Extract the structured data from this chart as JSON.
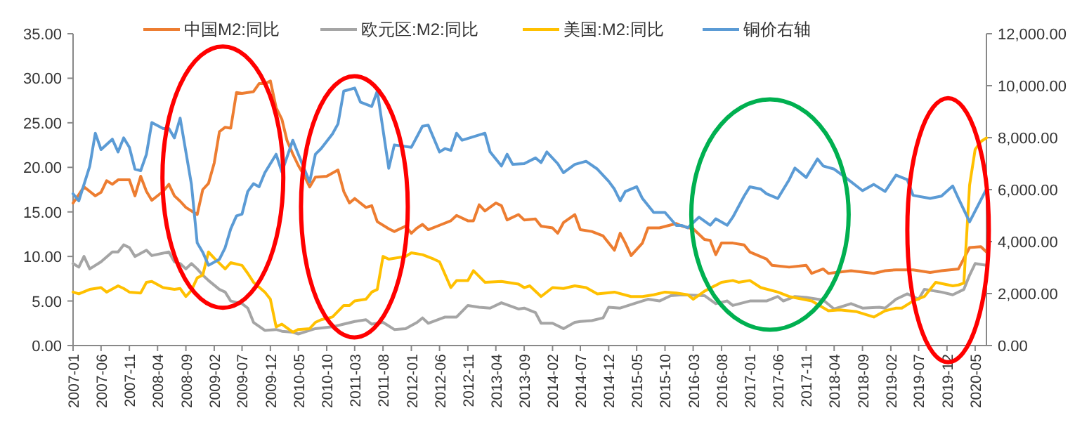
{
  "chart_data": {
    "type": "line",
    "legend": "top",
    "line_style": "solid",
    "marker": "none",
    "grid": false,
    "xlim": [
      "2007-01",
      "2020-07"
    ],
    "xticks": [
      "2007-01",
      "2007-06",
      "2007-11",
      "2008-04",
      "2008-09",
      "2009-02",
      "2009-07",
      "2009-12",
      "2010-05",
      "2010-10",
      "2011-03",
      "2011-08",
      "2012-01",
      "2012-06",
      "2012-11",
      "2013-04",
      "2013-09",
      "2014-02",
      "2014-07",
      "2014-12",
      "2015-05",
      "2015-10",
      "2016-03",
      "2016-08",
      "2017-01",
      "2017-06",
      "2017-11",
      "2018-04",
      "2018-09",
      "2019-02",
      "2019-07",
      "2019-12",
      "2020-05"
    ],
    "ylim": [
      0,
      35
    ],
    "yticks": [
      {
        "value": 0,
        "label": "0.00"
      },
      {
        "value": 5,
        "label": "5.00"
      },
      {
        "value": 10,
        "label": "10.00"
      },
      {
        "value": 15,
        "label": "15.00"
      },
      {
        "value": 20,
        "label": "20.00"
      },
      {
        "value": 25,
        "label": "25.00"
      },
      {
        "value": 30,
        "label": "30.00"
      },
      {
        "value": 35,
        "label": "35.00"
      }
    ],
    "y2lim": [
      0,
      12000
    ],
    "y2ticks": [
      {
        "value": 0,
        "label": "0.00"
      },
      {
        "value": 2000,
        "label": "2,000.00"
      },
      {
        "value": 4000,
        "label": "4,000.00"
      },
      {
        "value": 6000,
        "label": "6,000.00"
      },
      {
        "value": 8000,
        "label": "8,000.00"
      },
      {
        "value": 10000,
        "label": "10,000.00"
      },
      {
        "value": 12000,
        "label": "12,000.00"
      }
    ],
    "series": [
      {
        "name": "中国M2:同比",
        "color": "#ed7d31",
        "x": [
          "2007-01",
          "2007-03",
          "2007-04",
          "2007-05",
          "2007-06",
          "2007-07",
          "2007-08",
          "2007-09",
          "2007-11",
          "2007-12",
          "2008-01",
          "2008-02",
          "2008-03",
          "2008-05",
          "2008-06",
          "2008-07",
          "2008-08",
          "2008-09",
          "2008-11",
          "2008-12",
          "2009-01",
          "2009-02",
          "2009-03",
          "2009-04",
          "2009-05",
          "2009-06",
          "2009-07",
          "2009-09",
          "2009-10",
          "2009-11",
          "2009-12",
          "2010-01",
          "2010-02",
          "2010-03",
          "2010-04",
          "2010-05",
          "2010-06",
          "2010-07",
          "2010-08",
          "2010-10",
          "2010-12",
          "2011-01",
          "2011-02",
          "2011-03",
          "2011-05",
          "2011-06",
          "2011-07",
          "2011-09",
          "2011-10",
          "2011-12",
          "2012-01",
          "2012-02",
          "2012-03",
          "2012-04",
          "2012-06",
          "2012-08",
          "2012-09",
          "2012-11",
          "2012-12",
          "2013-01",
          "2013-02",
          "2013-04",
          "2013-05",
          "2013-06",
          "2013-08",
          "2013-09",
          "2013-11",
          "2013-12",
          "2014-02",
          "2014-03",
          "2014-04",
          "2014-06",
          "2014-07",
          "2014-09",
          "2014-11",
          "2015-01",
          "2015-02",
          "2015-03",
          "2015-04",
          "2015-06",
          "2015-07",
          "2015-09",
          "2015-12",
          "2016-01",
          "2016-03",
          "2016-05",
          "2016-06",
          "2016-07",
          "2016-08",
          "2016-10",
          "2016-12",
          "2017-01",
          "2017-04",
          "2017-05",
          "2017-08",
          "2017-11",
          "2017-12",
          "2018-02",
          "2018-03",
          "2018-07",
          "2018-11",
          "2019-01",
          "2019-03",
          "2019-06",
          "2019-09",
          "2019-11",
          "2020-02",
          "2020-04",
          "2020-06",
          "2020-07"
        ],
        "values": [
          16.0,
          17.8,
          17.3,
          16.8,
          17.2,
          18.5,
          18.1,
          18.6,
          18.6,
          16.8,
          19.0,
          17.3,
          16.3,
          17.3,
          18.1,
          16.8,
          16.2,
          15.5,
          14.7,
          17.5,
          18.2,
          20.5,
          24.0,
          24.5,
          24.4,
          28.4,
          28.3,
          28.5,
          29.4,
          29.4,
          29.7,
          26.7,
          25.4,
          23.0,
          21.5,
          20.2,
          19.1,
          17.8,
          18.9,
          19.0,
          19.7,
          17.3,
          16.0,
          16.5,
          15.5,
          15.7,
          13.9,
          13.1,
          12.8,
          13.4,
          12.6,
          13.2,
          13.6,
          13.0,
          13.5,
          14.0,
          14.6,
          14.0,
          14.0,
          15.8,
          15.1,
          16.0,
          15.7,
          14.1,
          14.7,
          14.1,
          14.2,
          13.4,
          13.2,
          12.6,
          13.8,
          14.7,
          13.0,
          12.8,
          12.3,
          10.7,
          12.6,
          11.5,
          10.1,
          11.5,
          13.2,
          13.2,
          13.7,
          13.4,
          13.1,
          11.9,
          11.8,
          10.2,
          11.5,
          11.5,
          11.3,
          10.5,
          9.7,
          9.0,
          8.8,
          9.0,
          8.1,
          8.6,
          8.1,
          8.4,
          8.1,
          8.4,
          8.5,
          8.5,
          8.2,
          8.4,
          8.6,
          11.0,
          11.1,
          10.5
        ]
      },
      {
        "name": "欧元区:M2:同比",
        "color": "#a5a5a5",
        "x": [
          "2007-01",
          "2007-02",
          "2007-03",
          "2007-04",
          "2007-06",
          "2007-08",
          "2007-09",
          "2007-10",
          "2007-11",
          "2007-12",
          "2008-02",
          "2008-03",
          "2008-06",
          "2008-07",
          "2008-08",
          "2008-09",
          "2008-10",
          "2008-11",
          "2008-12",
          "2009-01",
          "2009-03",
          "2009-04",
          "2009-05",
          "2009-07",
          "2009-08",
          "2009-09",
          "2009-11",
          "2010-01",
          "2010-02",
          "2010-04",
          "2010-05",
          "2010-07",
          "2010-08",
          "2010-11",
          "2011-01",
          "2011-03",
          "2011-05",
          "2011-06",
          "2011-08",
          "2011-10",
          "2011-12",
          "2012-02",
          "2012-03",
          "2012-04",
          "2012-07",
          "2012-09",
          "2012-11",
          "2013-01",
          "2013-03",
          "2013-05",
          "2013-08",
          "2013-09",
          "2013-11",
          "2013-12",
          "2014-02",
          "2014-04",
          "2014-06",
          "2014-07",
          "2014-09",
          "2014-11",
          "2014-12",
          "2015-02",
          "2015-05",
          "2015-07",
          "2015-09",
          "2015-11",
          "2016-01",
          "2016-05",
          "2016-07",
          "2016-09",
          "2016-10",
          "2017-01",
          "2017-04",
          "2017-06",
          "2017-07",
          "2017-09",
          "2017-11",
          "2018-02",
          "2018-04",
          "2018-07",
          "2018-09",
          "2018-12",
          "2019-01",
          "2019-03",
          "2019-05",
          "2019-07",
          "2019-08",
          "2019-11",
          "2020-01",
          "2020-03",
          "2020-04",
          "2020-05",
          "2020-07"
        ],
        "values": [
          9.2,
          8.8,
          10.0,
          8.6,
          9.4,
          10.5,
          10.5,
          11.3,
          11.0,
          10.0,
          10.7,
          10.1,
          10.5,
          9.4,
          9.2,
          8.6,
          9.2,
          8.6,
          7.9,
          7.3,
          6.3,
          6.0,
          5.0,
          4.7,
          4.2,
          2.6,
          1.7,
          1.8,
          1.6,
          1.5,
          1.3,
          1.7,
          1.9,
          2.1,
          2.4,
          2.7,
          2.9,
          2.4,
          2.6,
          1.8,
          1.9,
          2.6,
          3.1,
          2.5,
          3.2,
          3.2,
          4.5,
          4.3,
          4.2,
          4.8,
          4.1,
          4.2,
          3.7,
          2.5,
          2.5,
          1.9,
          2.6,
          2.7,
          2.8,
          3.1,
          4.3,
          4.2,
          4.8,
          5.2,
          5.0,
          5.6,
          5.7,
          5.6,
          4.7,
          5.0,
          4.5,
          5.0,
          5.0,
          5.5,
          5.0,
          5.5,
          5.4,
          5.1,
          4.1,
          4.7,
          4.2,
          4.3,
          4.2,
          5.2,
          5.8,
          5.2,
          6.3,
          6.0,
          5.7,
          6.3,
          7.9,
          9.2,
          9.0
        ]
      },
      {
        "name": "美国:M2:同比",
        "color": "#ffc000",
        "x": [
          "2007-01",
          "2007-02",
          "2007-04",
          "2007-06",
          "2007-07",
          "2007-09",
          "2007-10",
          "2007-11",
          "2008-01",
          "2008-02",
          "2008-03",
          "2008-05",
          "2008-07",
          "2008-08",
          "2008-09",
          "2008-10",
          "2008-11",
          "2008-12",
          "2009-01",
          "2009-02",
          "2009-04",
          "2009-05",
          "2009-07",
          "2009-08",
          "2009-09",
          "2009-11",
          "2009-12",
          "2010-01",
          "2010-02",
          "2010-04",
          "2010-05",
          "2010-07",
          "2010-08",
          "2010-09",
          "2010-11",
          "2011-01",
          "2011-02",
          "2011-03",
          "2011-05",
          "2011-06",
          "2011-07",
          "2011-08",
          "2011-09",
          "2011-12",
          "2012-01",
          "2012-03",
          "2012-05",
          "2012-06",
          "2012-08",
          "2012-09",
          "2012-11",
          "2012-12",
          "2013-02",
          "2013-05",
          "2013-08",
          "2013-09",
          "2013-10",
          "2013-12",
          "2014-02",
          "2014-04",
          "2014-06",
          "2014-08",
          "2014-10",
          "2015-01",
          "2015-04",
          "2015-06",
          "2015-08",
          "2015-10",
          "2015-12",
          "2016-02",
          "2016-03",
          "2016-05",
          "2016-08",
          "2016-10",
          "2016-11",
          "2017-01",
          "2017-03",
          "2017-06",
          "2017-08",
          "2017-12",
          "2018-03",
          "2018-05",
          "2018-08",
          "2018-11",
          "2019-01",
          "2019-03",
          "2019-04",
          "2019-06",
          "2019-08",
          "2019-10",
          "2020-01",
          "2020-02",
          "2020-03",
          "2020-04",
          "2020-05",
          "2020-06",
          "2020-07"
        ],
        "values": [
          6.0,
          5.8,
          6.3,
          6.5,
          6.0,
          6.7,
          6.4,
          6.0,
          5.9,
          7.1,
          7.2,
          6.5,
          6.3,
          6.4,
          5.5,
          6.2,
          7.6,
          7.9,
          10.5,
          9.8,
          8.6,
          9.3,
          9.0,
          8.1,
          7.1,
          6.0,
          5.2,
          2.1,
          2.4,
          1.5,
          1.8,
          1.9,
          2.6,
          2.9,
          3.2,
          4.5,
          4.5,
          5.0,
          5.2,
          6.0,
          6.3,
          10.0,
          9.7,
          10.0,
          10.4,
          10.2,
          9.7,
          9.4,
          6.5,
          7.3,
          7.3,
          8.4,
          7.1,
          7.2,
          6.9,
          6.5,
          6.7,
          5.5,
          6.5,
          6.4,
          6.7,
          6.5,
          5.8,
          6.0,
          5.5,
          5.5,
          5.7,
          6.0,
          5.9,
          5.7,
          5.2,
          6.1,
          7.1,
          7.3,
          7.1,
          7.3,
          6.5,
          6.0,
          5.5,
          5.0,
          3.9,
          4.0,
          3.8,
          3.2,
          3.9,
          4.2,
          4.2,
          5.0,
          5.5,
          7.1,
          6.7,
          6.8,
          7.0,
          18.0,
          22.0,
          22.9,
          23.3
        ]
      },
      {
        "name": "铜价右轴",
        "color": "#5b9bd5",
        "axis": "y2",
        "x": [
          "2007-01",
          "2007-02",
          "2007-03",
          "2007-04",
          "2007-05",
          "2007-06",
          "2007-08",
          "2007-09",
          "2007-10",
          "2007-11",
          "2007-12",
          "2008-01",
          "2008-02",
          "2008-03",
          "2008-05",
          "2008-06",
          "2008-07",
          "2008-08",
          "2008-09",
          "2008-10",
          "2008-11",
          "2008-12",
          "2009-01",
          "2009-03",
          "2009-04",
          "2009-05",
          "2009-06",
          "2009-07",
          "2009-08",
          "2009-09",
          "2009-10",
          "2009-11",
          "2010-01",
          "2010-02",
          "2010-04",
          "2010-05",
          "2010-07",
          "2010-08",
          "2010-09",
          "2010-11",
          "2010-12",
          "2011-01",
          "2011-03",
          "2011-04",
          "2011-06",
          "2011-07",
          "2011-09",
          "2011-10",
          "2012-01",
          "2012-03",
          "2012-04",
          "2012-06",
          "2012-07",
          "2012-08",
          "2012-09",
          "2012-10",
          "2013-02",
          "2013-03",
          "2013-05",
          "2013-06",
          "2013-07",
          "2013-09",
          "2013-11",
          "2013-12",
          "2014-01",
          "2014-03",
          "2014-04",
          "2014-06",
          "2014-08",
          "2014-10",
          "2014-12",
          "2015-01",
          "2015-02",
          "2015-03",
          "2015-05",
          "2015-06",
          "2015-08",
          "2015-10",
          "2015-12",
          "2016-01",
          "2016-02",
          "2016-04",
          "2016-06",
          "2016-07",
          "2016-09",
          "2016-10",
          "2016-12",
          "2017-01",
          "2017-03",
          "2017-04",
          "2017-06",
          "2017-08",
          "2017-09",
          "2017-11",
          "2018-01",
          "2018-02",
          "2018-04",
          "2018-06",
          "2018-09",
          "2018-11",
          "2019-01",
          "2019-03",
          "2019-05",
          "2019-06",
          "2019-09",
          "2019-11",
          "2020-01",
          "2020-02",
          "2020-04",
          "2020-07"
        ],
        "values": [
          5840,
          5570,
          6200,
          6900,
          8170,
          7540,
          7940,
          7450,
          7990,
          7630,
          6790,
          6730,
          7360,
          8580,
          8350,
          8350,
          7990,
          8750,
          7450,
          6200,
          3950,
          3590,
          3090,
          3320,
          3770,
          4490,
          4990,
          5060,
          5930,
          6230,
          6110,
          6650,
          7360,
          6680,
          7900,
          7360,
          6290,
          7360,
          7580,
          8140,
          8530,
          9790,
          9910,
          9370,
          9200,
          9790,
          6820,
          7720,
          7630,
          8440,
          8480,
          7450,
          7580,
          7510,
          8170,
          7900,
          8170,
          7450,
          6910,
          7360,
          6970,
          7000,
          7220,
          7040,
          7450,
          7000,
          6650,
          6970,
          7090,
          6790,
          6320,
          6020,
          5570,
          5930,
          6110,
          5660,
          5120,
          5120,
          4620,
          4620,
          4530,
          4940,
          4630,
          4880,
          4630,
          4940,
          5750,
          6110,
          6020,
          5840,
          5660,
          6380,
          6830,
          6470,
          7180,
          6910,
          6790,
          6470,
          5960,
          6200,
          5930,
          6560,
          6380,
          5780,
          5660,
          5750,
          6140,
          5660,
          4760,
          6020
        ]
      }
    ]
  }
}
